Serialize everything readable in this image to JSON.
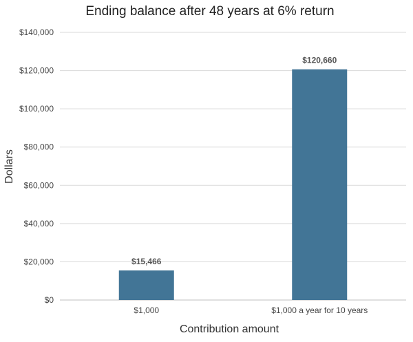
{
  "chart_data": {
    "type": "bar",
    "title": "Ending balance after 48 years at 6% return",
    "xlabel": "Contribution amount",
    "ylabel": "Dollars",
    "categories": [
      "$1,000",
      "$1,000 a year for 10 years"
    ],
    "values": [
      15466,
      120660
    ],
    "data_labels": [
      "$15,466",
      "$120,660"
    ],
    "ylim": [
      0,
      140000
    ],
    "yticks": [
      0,
      20000,
      40000,
      60000,
      80000,
      100000,
      120000,
      140000
    ],
    "ytick_labels": [
      "$0",
      "$20,000",
      "$40,000",
      "$60,000",
      "$80,000",
      "$100,000",
      "$120,000",
      "$140,000"
    ],
    "grid": true,
    "legend": "none",
    "bar_color": "#427596"
  }
}
